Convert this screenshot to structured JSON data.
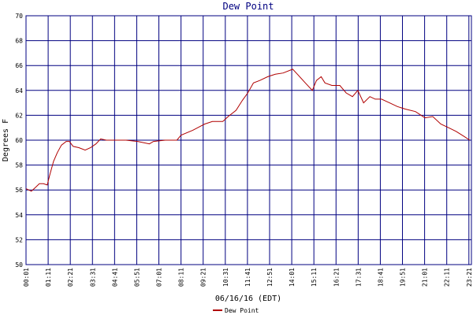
{
  "chart_data": {
    "type": "line",
    "title": "Dew Point",
    "xlabel": "06/16/16 (EDT)",
    "ylabel": "Degrees F",
    "x": [
      1,
      18,
      31,
      43,
      56,
      68,
      76,
      88,
      100,
      113,
      128,
      138,
      150,
      168,
      188,
      205,
      222,
      237,
      255,
      280,
      317,
      354,
      391,
      404,
      441,
      478,
      491,
      528,
      566,
      590,
      623,
      640,
      665,
      685,
      702,
      720,
      740,
      765,
      789,
      814,
      844,
      859,
      884,
      906,
      919,
      934,
      946,
      968,
      993,
      1013,
      1033,
      1050,
      1068,
      1088,
      1105,
      1125,
      1150,
      1175,
      1200,
      1232,
      1262,
      1287,
      1312,
      1337,
      1361,
      1386,
      1404
    ],
    "series": [
      {
        "name": "Dew Point",
        "color": "#b00000",
        "values": [
          56.1,
          55.9,
          56.2,
          56.5,
          56.5,
          56.4,
          57.2,
          58.3,
          59.0,
          59.6,
          59.9,
          59.9,
          59.5,
          59.4,
          59.2,
          59.4,
          59.7,
          60.1,
          60.0,
          60.0,
          60.0,
          59.9,
          59.7,
          59.9,
          60.0,
          60.0,
          60.4,
          60.8,
          61.3,
          61.5,
          61.5,
          61.9,
          62.4,
          63.2,
          63.8,
          64.6,
          64.8,
          65.1,
          65.3,
          65.4,
          65.7,
          65.3,
          64.6,
          64.0,
          64.8,
          65.1,
          64.6,
          64.4,
          64.4,
          63.8,
          63.5,
          64.0,
          63.0,
          63.5,
          63.3,
          63.3,
          63.0,
          62.7,
          62.5,
          62.3,
          61.8,
          61.9,
          61.3,
          61.0,
          60.7,
          60.3,
          60.0
        ]
      }
    ],
    "xlim": [
      1,
      1409
    ],
    "xticks": [
      {
        "value": 1,
        "label": "00:01"
      },
      {
        "value": 71,
        "label": "01:11"
      },
      {
        "value": 141,
        "label": "02:21"
      },
      {
        "value": 211,
        "label": "03:31"
      },
      {
        "value": 281,
        "label": "04:41"
      },
      {
        "value": 351,
        "label": "05:51"
      },
      {
        "value": 421,
        "label": "07:01"
      },
      {
        "value": 491,
        "label": "08:11"
      },
      {
        "value": 561,
        "label": "09:21"
      },
      {
        "value": 631,
        "label": "10:31"
      },
      {
        "value": 701,
        "label": "11:41"
      },
      {
        "value": 771,
        "label": "12:51"
      },
      {
        "value": 841,
        "label": "14:01"
      },
      {
        "value": 911,
        "label": "15:11"
      },
      {
        "value": 981,
        "label": "16:21"
      },
      {
        "value": 1051,
        "label": "17:31"
      },
      {
        "value": 1121,
        "label": "18:41"
      },
      {
        "value": 1191,
        "label": "19:51"
      },
      {
        "value": 1261,
        "label": "21:01"
      },
      {
        "value": 1331,
        "label": "22:11"
      },
      {
        "value": 1401,
        "label": "23:21"
      }
    ],
    "ylim": [
      50,
      70
    ],
    "yticks": [
      50,
      52,
      54,
      56,
      58,
      60,
      62,
      64,
      66,
      68,
      70
    ],
    "grid": true
  }
}
